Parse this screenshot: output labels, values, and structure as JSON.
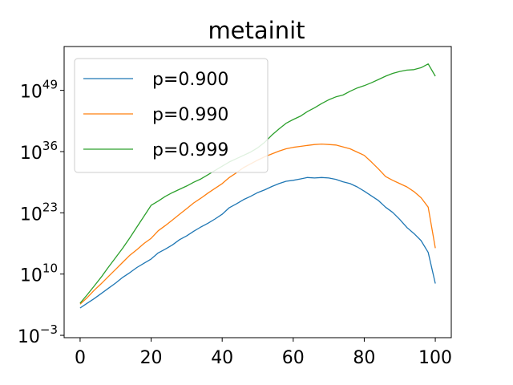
{
  "chart_data": {
    "type": "line",
    "title": "metainit",
    "xlabel": "",
    "ylabel": "",
    "y_scale": "log10",
    "xlim": [
      -4.5,
      104.5
    ],
    "ylim_exponent": [
      -3.5,
      58.3
    ],
    "x_ticks": [
      0,
      20,
      40,
      60,
      80,
      100
    ],
    "y_tick_exponents": [
      -3,
      10,
      23,
      36,
      49
    ],
    "y_tick_base": "10",
    "legend_position": "top-left",
    "grid": false,
    "x": [
      0,
      2,
      4,
      6,
      8,
      10,
      12,
      14,
      16,
      18,
      20,
      22,
      24,
      26,
      28,
      30,
      32,
      34,
      36,
      38,
      40,
      42,
      44,
      46,
      48,
      50,
      52,
      54,
      56,
      58,
      60,
      62,
      64,
      66,
      68,
      70,
      72,
      74,
      76,
      78,
      80,
      82,
      84,
      86,
      88,
      90,
      92,
      94,
      96,
      98,
      100
    ],
    "series": [
      {
        "name": "p=0.900",
        "color": "#1f77b4",
        "log10_values": [
          2.8,
          3.8,
          4.8,
          5.9,
          7.0,
          8.1,
          9.3,
          10.3,
          11.4,
          12.3,
          13.2,
          14.5,
          15.3,
          16.2,
          17.3,
          18.1,
          19.1,
          20.0,
          20.8,
          21.7,
          22.7,
          24.1,
          24.9,
          25.8,
          26.5,
          27.3,
          27.9,
          28.6,
          29.2,
          29.7,
          29.9,
          30.2,
          30.5,
          30.4,
          30.5,
          30.4,
          30.1,
          29.6,
          29.2,
          28.5,
          27.6,
          26.6,
          25.6,
          24.2,
          23.1,
          21.6,
          19.9,
          18.6,
          17.1,
          14.6,
          8.0
        ]
      },
      {
        "name": "p=0.990",
        "color": "#ff7f0e",
        "log10_values": [
          3.6,
          5.0,
          6.6,
          8.0,
          9.5,
          11.0,
          12.5,
          14.0,
          15.2,
          16.5,
          17.6,
          19.2,
          20.3,
          21.5,
          22.7,
          23.9,
          25.1,
          26.1,
          27.2,
          28.2,
          29.2,
          30.5,
          31.5,
          32.6,
          33.4,
          34.2,
          34.9,
          35.5,
          36.1,
          36.6,
          36.9,
          37.1,
          37.3,
          37.5,
          37.6,
          37.5,
          37.4,
          37.0,
          36.6,
          35.9,
          35.2,
          33.8,
          32.3,
          30.7,
          29.9,
          29.2,
          28.5,
          27.5,
          26.2,
          24.2,
          15.5
        ]
      },
      {
        "name": "p=0.999",
        "color": "#2ca02c",
        "log10_values": [
          3.8,
          5.6,
          7.5,
          9.4,
          11.5,
          13.5,
          15.5,
          17.7,
          20.0,
          22.3,
          24.6,
          25.5,
          26.5,
          27.3,
          28.0,
          28.7,
          29.5,
          30.2,
          31.1,
          32.0,
          32.9,
          33.8,
          34.5,
          35.2,
          35.9,
          36.8,
          38.0,
          39.5,
          40.8,
          42.0,
          42.8,
          43.5,
          44.5,
          45.3,
          46.2,
          47.0,
          47.6,
          48.0,
          48.8,
          49.5,
          50.0,
          50.6,
          51.3,
          52.0,
          52.6,
          53.0,
          53.3,
          53.4,
          53.8,
          54.6,
          52.0
        ]
      }
    ]
  }
}
